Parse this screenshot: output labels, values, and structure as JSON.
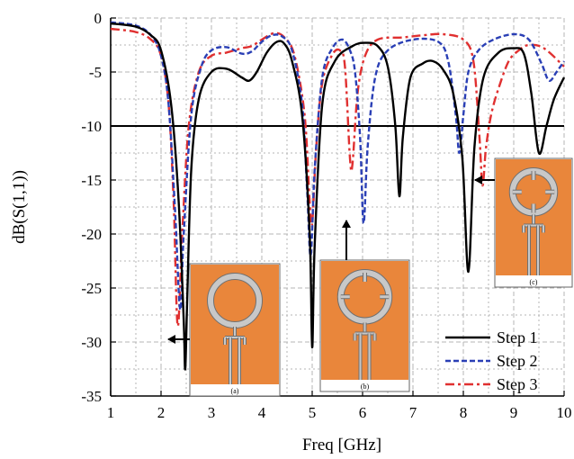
{
  "chart_data": {
    "type": "line",
    "title": "",
    "xlabel": "Freq [GHz]",
    "ylabel": "dB(S(1,1))",
    "xlim": [
      1,
      10
    ],
    "ylim": [
      -35,
      0
    ],
    "xticks": [
      1,
      2,
      3,
      4,
      5,
      6,
      7,
      8,
      9,
      10
    ],
    "yticks": [
      0,
      -5,
      -10,
      -15,
      -20,
      -25,
      -30,
      -35
    ],
    "grid": true,
    "legend_position": "bottom-right",
    "reference_line": {
      "y": -10,
      "color": "#000000"
    },
    "series": [
      {
        "name": "Step 1",
        "color": "#000000",
        "style": "solid",
        "points": [
          [
            1,
            -0.5
          ],
          [
            1.5,
            -0.8
          ],
          [
            1.8,
            -1.6
          ],
          [
            2.0,
            -3
          ],
          [
            2.2,
            -8
          ],
          [
            2.35,
            -17
          ],
          [
            2.45,
            -28
          ],
          [
            2.48,
            -32.5
          ],
          [
            2.52,
            -26
          ],
          [
            2.6,
            -14
          ],
          [
            2.75,
            -7.5
          ],
          [
            3.0,
            -5
          ],
          [
            3.3,
            -4.7
          ],
          [
            3.6,
            -5.5
          ],
          [
            3.75,
            -5.8
          ],
          [
            3.9,
            -5
          ],
          [
            4.1,
            -3.2
          ],
          [
            4.3,
            -2.2
          ],
          [
            4.45,
            -2.4
          ],
          [
            4.6,
            -4
          ],
          [
            4.8,
            -9
          ],
          [
            4.95,
            -20
          ],
          [
            5.0,
            -30.5
          ],
          [
            5.05,
            -21
          ],
          [
            5.2,
            -8
          ],
          [
            5.45,
            -4
          ],
          [
            5.8,
            -2.6
          ],
          [
            6.05,
            -2.3
          ],
          [
            6.3,
            -2.6
          ],
          [
            6.5,
            -4.5
          ],
          [
            6.65,
            -10
          ],
          [
            6.73,
            -16.5
          ],
          [
            6.8,
            -11
          ],
          [
            6.95,
            -5.5
          ],
          [
            7.2,
            -4.2
          ],
          [
            7.4,
            -4
          ],
          [
            7.6,
            -4.8
          ],
          [
            7.8,
            -7
          ],
          [
            7.98,
            -13
          ],
          [
            8.1,
            -23.5
          ],
          [
            8.22,
            -12
          ],
          [
            8.4,
            -5.5
          ],
          [
            8.7,
            -3.2
          ],
          [
            9.0,
            -2.8
          ],
          [
            9.2,
            -3.3
          ],
          [
            9.35,
            -7
          ],
          [
            9.5,
            -12.5
          ],
          [
            9.65,
            -10
          ],
          [
            9.8,
            -7.5
          ],
          [
            10.0,
            -5.5
          ]
        ]
      },
      {
        "name": "Step 2",
        "color": "#2a3fb5",
        "style": "dashed",
        "points": [
          [
            1,
            -0.4
          ],
          [
            1.5,
            -0.7
          ],
          [
            1.8,
            -1.6
          ],
          [
            2.0,
            -3.5
          ],
          [
            2.15,
            -8
          ],
          [
            2.28,
            -18
          ],
          [
            2.38,
            -27
          ],
          [
            2.45,
            -20
          ],
          [
            2.6,
            -9
          ],
          [
            2.8,
            -4.5
          ],
          [
            3.0,
            -3
          ],
          [
            3.3,
            -2.7
          ],
          [
            3.6,
            -3.3
          ],
          [
            3.8,
            -3.1
          ],
          [
            4.0,
            -2.2
          ],
          [
            4.2,
            -1.6
          ],
          [
            4.4,
            -1.7
          ],
          [
            4.6,
            -3
          ],
          [
            4.8,
            -8
          ],
          [
            4.9,
            -16
          ],
          [
            4.97,
            -22
          ],
          [
            5.05,
            -14
          ],
          [
            5.2,
            -5.5
          ],
          [
            5.4,
            -2.8
          ],
          [
            5.6,
            -2
          ],
          [
            5.75,
            -3
          ],
          [
            5.85,
            -5
          ],
          [
            5.95,
            -11
          ],
          [
            6.02,
            -19
          ],
          [
            6.1,
            -12
          ],
          [
            6.25,
            -5.5
          ],
          [
            6.5,
            -3
          ],
          [
            7.0,
            -2
          ],
          [
            7.5,
            -2.2
          ],
          [
            7.7,
            -4
          ],
          [
            7.85,
            -9
          ],
          [
            7.92,
            -12.5
          ],
          [
            8.0,
            -9
          ],
          [
            8.1,
            -5
          ],
          [
            8.3,
            -3
          ],
          [
            8.6,
            -2
          ],
          [
            9.0,
            -1.5
          ],
          [
            9.3,
            -2
          ],
          [
            9.55,
            -4.2
          ],
          [
            9.7,
            -5.8
          ],
          [
            9.85,
            -5
          ],
          [
            10.0,
            -4
          ]
        ]
      },
      {
        "name": "Step 3",
        "color": "#e03030",
        "style": "dashdot",
        "points": [
          [
            1,
            -1
          ],
          [
            1.5,
            -1.3
          ],
          [
            1.8,
            -2
          ],
          [
            2.0,
            -3.5
          ],
          [
            2.15,
            -8
          ],
          [
            2.25,
            -17
          ],
          [
            2.33,
            -28.5
          ],
          [
            2.42,
            -20
          ],
          [
            2.55,
            -10
          ],
          [
            2.75,
            -5
          ],
          [
            3.0,
            -3.5
          ],
          [
            3.3,
            -3.2
          ],
          [
            3.6,
            -2.8
          ],
          [
            3.8,
            -2.6
          ],
          [
            4.0,
            -2
          ],
          [
            4.25,
            -1.4
          ],
          [
            4.45,
            -1.8
          ],
          [
            4.65,
            -3.5
          ],
          [
            4.85,
            -9
          ],
          [
            4.95,
            -17
          ],
          [
            5.0,
            -19
          ],
          [
            5.08,
            -12
          ],
          [
            5.2,
            -6
          ],
          [
            5.4,
            -3.4
          ],
          [
            5.55,
            -3
          ],
          [
            5.65,
            -4.5
          ],
          [
            5.75,
            -13
          ],
          [
            5.8,
            -13.5
          ],
          [
            5.9,
            -7
          ],
          [
            6.05,
            -3.5
          ],
          [
            6.3,
            -2
          ],
          [
            6.8,
            -1.8
          ],
          [
            7.2,
            -1.6
          ],
          [
            7.6,
            -1.5
          ],
          [
            8.0,
            -2
          ],
          [
            8.2,
            -4
          ],
          [
            8.32,
            -11
          ],
          [
            8.38,
            -15.5
          ],
          [
            8.45,
            -12
          ],
          [
            8.55,
            -9
          ],
          [
            8.7,
            -6.5
          ],
          [
            8.9,
            -4
          ],
          [
            9.1,
            -3
          ],
          [
            9.3,
            -2.5
          ],
          [
            9.6,
            -2.8
          ],
          [
            10.0,
            -4.5
          ]
        ]
      }
    ],
    "insets": [
      {
        "caption": "(a)",
        "slots": 0
      },
      {
        "caption": "(b)",
        "slots": 3
      },
      {
        "caption": "(c)",
        "slots": 4
      }
    ],
    "colors": {
      "substrate": "#e9863b",
      "metal": "#c8c8c8",
      "grid": "#b4b4b4"
    }
  }
}
